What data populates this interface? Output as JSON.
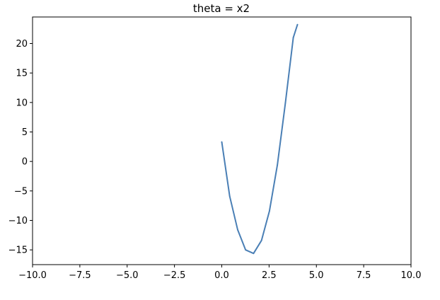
{
  "chart_data": {
    "type": "line",
    "title": "theta = x2",
    "xlabel": "",
    "ylabel": "",
    "xlim": [
      -10.0,
      10.0
    ],
    "ylim": [
      -17.5,
      24.5
    ],
    "x_ticks": [
      {
        "value": -10.0,
        "label": "−10.0"
      },
      {
        "value": -7.5,
        "label": "−7.5"
      },
      {
        "value": -5.0,
        "label": "−5.0"
      },
      {
        "value": -2.5,
        "label": "−2.5"
      },
      {
        "value": 0.0,
        "label": "0.0"
      },
      {
        "value": 2.5,
        "label": "2.5"
      },
      {
        "value": 5.0,
        "label": "5.0"
      },
      {
        "value": 7.5,
        "label": "7.5"
      },
      {
        "value": 10.0,
        "label": "10.0"
      }
    ],
    "y_ticks": [
      {
        "value": -15,
        "label": "−15"
      },
      {
        "value": -10,
        "label": "−10"
      },
      {
        "value": -5,
        "label": "−5"
      },
      {
        "value": 0,
        "label": "0"
      },
      {
        "value": 5,
        "label": "5"
      },
      {
        "value": 10,
        "label": "10"
      },
      {
        "value": 15,
        "label": "15"
      },
      {
        "value": 20,
        "label": "20"
      }
    ],
    "grid": false,
    "series": [
      {
        "color": "#4a7fb5",
        "x": [
          0.0,
          0.42,
          0.84,
          1.26,
          1.68,
          2.1,
          2.52,
          2.94,
          3.36,
          3.78,
          4.0
        ],
        "y": [
          3.3,
          -5.9,
          -11.6,
          -15.0,
          -15.6,
          -13.4,
          -8.4,
          -0.6,
          9.9,
          21.0,
          23.2
        ]
      }
    ]
  }
}
